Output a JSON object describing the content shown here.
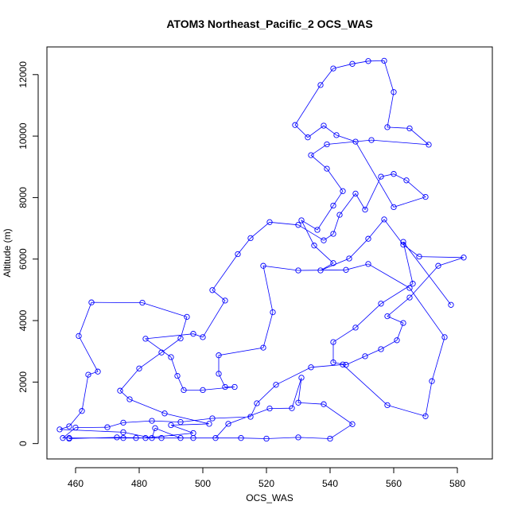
{
  "chart_data": {
    "type": "line",
    "title": "ATOM3 Northeast_Pacific_2 OCS_WAS",
    "xlabel": "OCS_WAS",
    "ylabel": "Altitude (m)",
    "xlim": [
      451,
      591
    ],
    "ylim": [
      -500,
      12900
    ],
    "xticks": [
      "460",
      "480",
      "500",
      "520",
      "540",
      "560",
      "580"
    ],
    "yticks": [
      "0",
      "2000",
      "4000",
      "6000",
      "8000",
      "10000",
      "12000"
    ],
    "xtick_values": [
      460,
      480,
      500,
      520,
      540,
      560,
      580
    ],
    "ytick_values": [
      0,
      2000,
      4000,
      6000,
      8000,
      10000,
      12000
    ],
    "grid": false,
    "series": [
      {
        "color": "#0000ff",
        "marker": "open-circle",
        "points": [
          [
            458,
            160
          ],
          [
            473,
            200
          ],
          [
            482,
            180
          ],
          [
            497,
            340
          ],
          [
            490,
            600
          ],
          [
            502,
            640
          ],
          [
            488,
            980
          ],
          [
            477,
            1440
          ],
          [
            474,
            1720
          ],
          [
            480,
            2440
          ],
          [
            487,
            2960
          ],
          [
            493,
            3420
          ],
          [
            495,
            4120
          ],
          [
            481,
            4580
          ],
          [
            465,
            4590
          ],
          [
            461,
            3500
          ],
          [
            467,
            2340
          ],
          [
            464,
            2240
          ],
          [
            462,
            1060
          ],
          [
            458,
            560
          ],
          [
            455,
            460
          ],
          [
            475,
            370
          ],
          [
            484,
            180
          ],
          [
            485,
            500
          ],
          [
            493,
            180
          ],
          [
            504,
            180
          ],
          [
            508,
            640
          ],
          [
            521,
            1140
          ],
          [
            528,
            1150
          ],
          [
            531,
            2140
          ],
          [
            530,
            1330
          ],
          [
            538,
            1280
          ],
          [
            547,
            630
          ],
          [
            540,
            160
          ],
          [
            530,
            200
          ],
          [
            520,
            160
          ],
          [
            512,
            180
          ],
          [
            497,
            180
          ],
          [
            487,
            180
          ],
          [
            479,
            180
          ],
          [
            475,
            180
          ],
          [
            458,
            180
          ],
          [
            456,
            180
          ],
          [
            460,
            520
          ],
          [
            470,
            530
          ],
          [
            475,
            680
          ],
          [
            484,
            740
          ],
          [
            493,
            700
          ],
          [
            503,
            820
          ],
          [
            515,
            870
          ],
          [
            517,
            1310
          ],
          [
            523,
            1910
          ],
          [
            534,
            2480
          ],
          [
            544,
            2570
          ],
          [
            558,
            1250
          ],
          [
            570,
            890
          ],
          [
            572,
            2030
          ],
          [
            576,
            3460
          ],
          [
            565,
            5060
          ],
          [
            552,
            5840
          ],
          [
            545,
            5650
          ],
          [
            530,
            5630
          ],
          [
            519,
            5780
          ],
          [
            522,
            4270
          ],
          [
            519,
            3120
          ],
          [
            505,
            2870
          ],
          [
            505,
            2270
          ],
          [
            507,
            1840
          ],
          [
            510,
            1840
          ],
          [
            500,
            1740
          ],
          [
            494,
            1740
          ],
          [
            492,
            2200
          ],
          [
            490,
            2810
          ],
          [
            482,
            3410
          ],
          [
            497,
            3570
          ],
          [
            500,
            3460
          ],
          [
            507,
            4650
          ],
          [
            503,
            4990
          ],
          [
            511,
            6160
          ],
          [
            515,
            6680
          ],
          [
            521,
            7200
          ],
          [
            530,
            7110
          ],
          [
            538,
            6610
          ],
          [
            541,
            6820
          ],
          [
            543,
            7440
          ],
          [
            548,
            8130
          ],
          [
            551,
            7610
          ],
          [
            556,
            8680
          ],
          [
            560,
            8770
          ],
          [
            564,
            8560
          ],
          [
            570,
            8020
          ],
          [
            560,
            7690
          ],
          [
            548,
            9820
          ],
          [
            542,
            10030
          ],
          [
            538,
            10340
          ],
          [
            533,
            9960
          ],
          [
            529,
            10360
          ],
          [
            537,
            11660
          ],
          [
            541,
            12200
          ],
          [
            547,
            12350
          ],
          [
            552,
            12440
          ],
          [
            557,
            12450
          ],
          [
            560,
            11430
          ],
          [
            558,
            10290
          ],
          [
            565,
            10250
          ],
          [
            571,
            9720
          ],
          [
            553,
            9870
          ],
          [
            539,
            9730
          ],
          [
            534,
            9380
          ],
          [
            539,
            8940
          ],
          [
            544,
            8210
          ],
          [
            541,
            7740
          ],
          [
            536,
            6950
          ],
          [
            531,
            7260
          ],
          [
            535,
            6440
          ],
          [
            541,
            5870
          ],
          [
            537,
            5630
          ],
          [
            546,
            6020
          ],
          [
            552,
            6660
          ],
          [
            557,
            7290
          ],
          [
            563,
            6470
          ],
          [
            568,
            6080
          ],
          [
            582,
            6050
          ],
          [
            574,
            5780
          ],
          [
            565,
            4750
          ],
          [
            558,
            4140
          ],
          [
            563,
            3920
          ],
          [
            561,
            3360
          ],
          [
            556,
            3070
          ],
          [
            551,
            2840
          ],
          [
            545,
            2560
          ],
          [
            541,
            2640
          ],
          [
            541,
            3300
          ],
          [
            548,
            3770
          ],
          [
            556,
            4550
          ],
          [
            566,
            5200
          ],
          [
            563,
            6560
          ],
          [
            578,
            4510
          ]
        ]
      }
    ]
  }
}
